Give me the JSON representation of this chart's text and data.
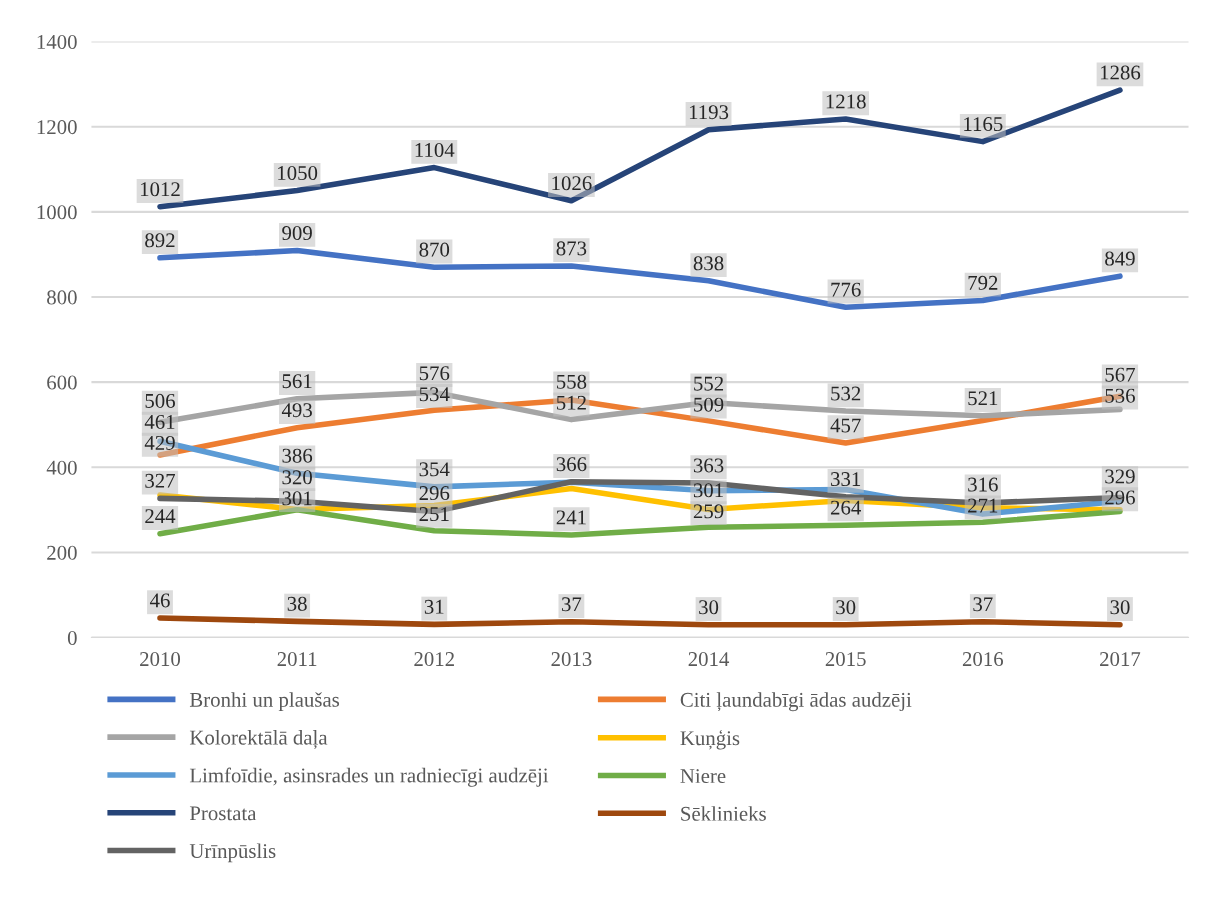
{
  "chart_data": {
    "type": "line",
    "categories": [
      "2010",
      "2011",
      "2012",
      "2013",
      "2014",
      "2015",
      "2016",
      "2017"
    ],
    "ylim": [
      0,
      1400
    ],
    "yticks": [
      0,
      200,
      400,
      600,
      800,
      1000,
      1200,
      1400
    ],
    "grid": "y",
    "legend": "bottom",
    "line_style": "solid",
    "series": [
      {
        "name": "Bronhi un plaušas",
        "color": "#4472c4",
        "values": [
          892,
          909,
          870,
          873,
          838,
          776,
          792,
          849
        ],
        "value_labels": [
          "892",
          "909",
          "870",
          "873",
          "838",
          "776",
          "792",
          "849"
        ]
      },
      {
        "name": "Citi ļaundabīgi ādas audzēji",
        "color": "#ed7d31",
        "values": [
          429,
          493,
          534,
          558,
          509,
          457,
          510,
          567
        ],
        "value_labels": [
          "429",
          "493",
          "534",
          "558",
          "509",
          "457",
          null,
          "567"
        ]
      },
      {
        "name": "Kolorektālā daļa",
        "color": "#a5a5a5",
        "values": [
          506,
          561,
          576,
          512,
          552,
          532,
          521,
          536
        ],
        "value_labels": [
          "506",
          "561",
          "576",
          "512",
          "552",
          "532",
          "521",
          "536"
        ]
      },
      {
        "name": "Kuņģis",
        "color": "#ffc000",
        "values": [
          335,
          301,
          310,
          350,
          301,
          322,
          305,
          300
        ],
        "value_labels": [
          null,
          "301",
          null,
          null,
          "301",
          null,
          null,
          null
        ]
      },
      {
        "name": "Limfoīdie, asinsrades un radniecīgi audzēji",
        "color": "#5b9bd5",
        "values": [
          461,
          386,
          354,
          365,
          345,
          348,
          290,
          320
        ],
        "value_labels": [
          "461",
          "386",
          "354",
          null,
          null,
          null,
          null,
          null
        ]
      },
      {
        "name": "Niere",
        "color": "#70ad47",
        "values": [
          244,
          300,
          251,
          241,
          259,
          264,
          271,
          296
        ],
        "value_labels": [
          "244",
          null,
          "251",
          "241",
          "259",
          "264",
          "271",
          "296"
        ]
      },
      {
        "name": "Prostata",
        "color": "#264478",
        "values": [
          1012,
          1050,
          1104,
          1026,
          1193,
          1218,
          1165,
          1286
        ],
        "value_labels": [
          "1012",
          "1050",
          "1104",
          "1026",
          "1193",
          "1218",
          "1165",
          "1286"
        ]
      },
      {
        "name": "Sēklinieks",
        "color": "#9e480e",
        "values": [
          46,
          38,
          31,
          37,
          30,
          30,
          37,
          30
        ],
        "value_labels": [
          "46",
          "38",
          "31",
          "37",
          "30",
          "30",
          "37",
          "30"
        ]
      },
      {
        "name": "Urīnpūslis",
        "color": "#636363",
        "values": [
          327,
          320,
          296,
          366,
          363,
          331,
          316,
          329
        ],
        "value_labels": [
          "327",
          "320",
          "296",
          "366",
          "363",
          "331",
          "316",
          "329"
        ]
      }
    ]
  }
}
